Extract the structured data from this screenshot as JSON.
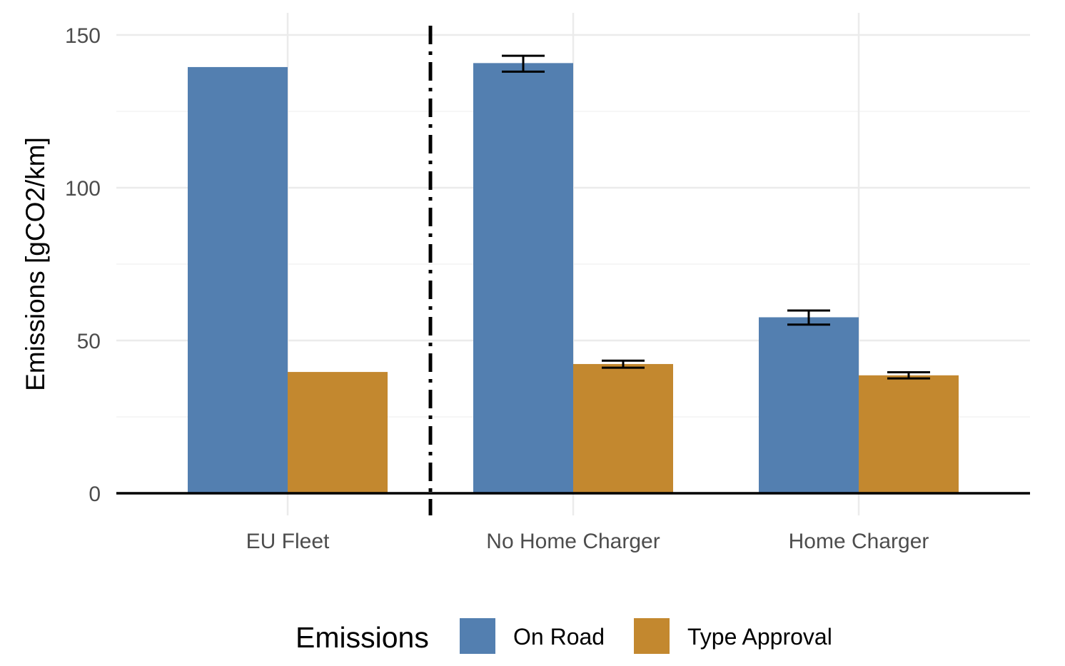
{
  "chart_data": {
    "type": "bar",
    "title": "",
    "xlabel": "",
    "ylabel": "Emissions [gCO2/km]",
    "ylim": [
      0,
      150
    ],
    "yticks": [
      0,
      50,
      100,
      150
    ],
    "categories": [
      "EU Fleet",
      "No Home Charger",
      "Home Charger"
    ],
    "series": [
      {
        "name": "On Road",
        "color": "#537FB0",
        "values": [
          139.5,
          140.8,
          57.6
        ],
        "error_low": [
          null,
          138.0,
          55.2
        ],
        "error_high": [
          null,
          143.2,
          59.8
        ]
      },
      {
        "name": "Type Approval",
        "color": "#C3882F",
        "values": [
          39.7,
          42.3,
          38.6
        ],
        "error_low": [
          null,
          41.1,
          37.6
        ],
        "error_high": [
          null,
          43.4,
          39.6
        ]
      }
    ],
    "separator": {
      "style": "dash-dot",
      "between": [
        "EU Fleet",
        "No Home Charger"
      ]
    },
    "grid": true,
    "legend": {
      "title": "Emissions",
      "position": "bottom"
    }
  }
}
